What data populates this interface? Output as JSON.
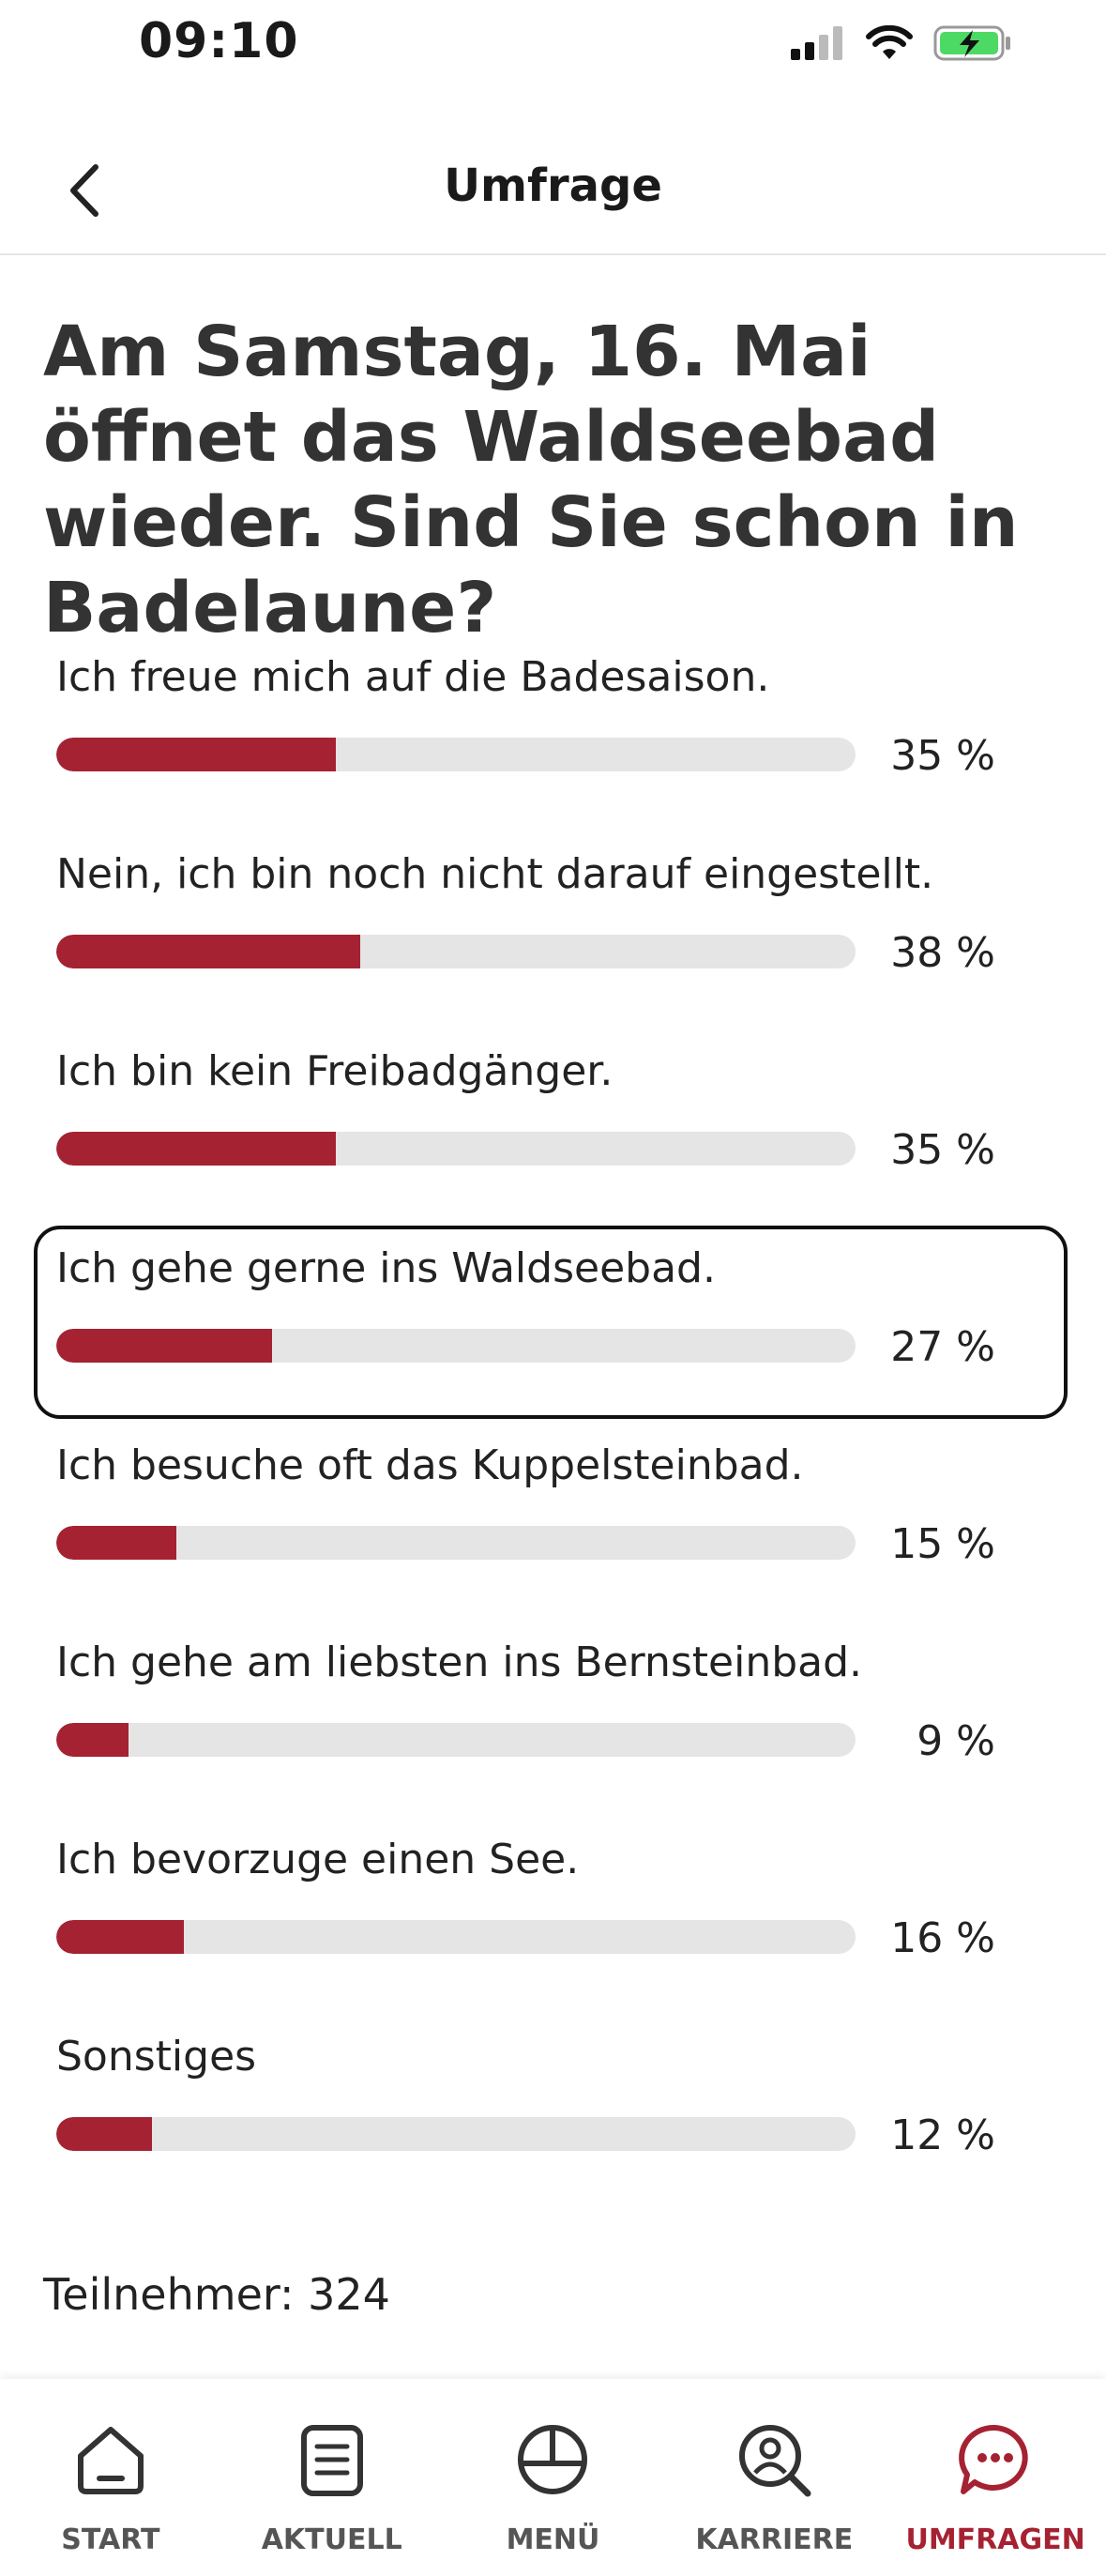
{
  "status_bar": {
    "time": "09:10"
  },
  "header": {
    "title": "Umfrage"
  },
  "poll": {
    "question": "Am Samstag, 16. Mai öffnet das Waldseebad wieder. Sind Sie schon in Badelaune?",
    "options": [
      {
        "label": "Ich freue mich auf die Badesaison.",
        "percent": 35,
        "percent_text": "35 %"
      },
      {
        "label": "Nein, ich bin noch nicht darauf eingestellt.",
        "percent": 38,
        "percent_text": "38 %"
      },
      {
        "label": "Ich bin kein Freibadgänger.",
        "percent": 35,
        "percent_text": "35 %"
      },
      {
        "label": "Ich gehe gerne ins Waldseebad.",
        "percent": 27,
        "percent_text": "27 %",
        "selected": true
      },
      {
        "label": "Ich besuche oft das Kuppelsteinbad.",
        "percent": 15,
        "percent_text": "15 %"
      },
      {
        "label": "Ich gehe am liebsten ins Bernsteinbad.",
        "percent": 9,
        "percent_text": "9 %"
      },
      {
        "label": "Ich bevorzuge einen See.",
        "percent": 16,
        "percent_text": "16 %"
      },
      {
        "label": "Sonstiges",
        "percent": 12,
        "percent_text": "12 %"
      }
    ],
    "participants": "Teilnehmer: 324"
  },
  "tab_bar": {
    "tabs": [
      {
        "label": "START",
        "icon": "home-icon"
      },
      {
        "label": "AKTUELL",
        "icon": "news-icon"
      },
      {
        "label": "MENÜ",
        "icon": "menu-plate-icon"
      },
      {
        "label": "KARRIERE",
        "icon": "career-search-icon"
      },
      {
        "label": "UMFRAGEN",
        "icon": "chat-bubble-icon",
        "active": true
      }
    ]
  },
  "colors": {
    "accent": "#a52232",
    "track": "#e5e5e5",
    "battery": "#4cd964"
  }
}
